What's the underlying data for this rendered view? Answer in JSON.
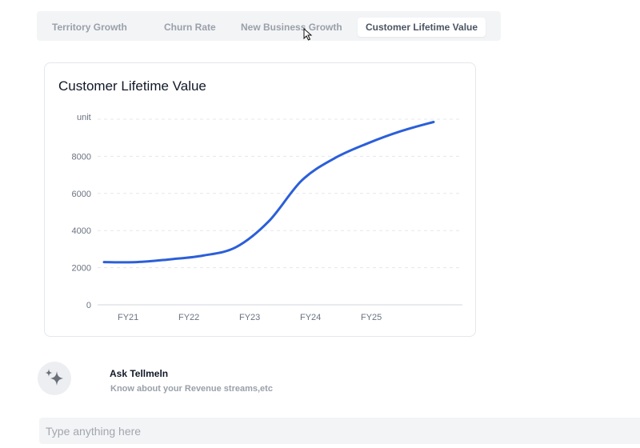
{
  "tabs": [
    {
      "label": "Territory Growth",
      "active": false
    },
    {
      "label": "Churn Rate",
      "active": false
    },
    {
      "label": "New Business Growth",
      "active": false
    },
    {
      "label": "Customer Lifetime Value",
      "active": true
    }
  ],
  "card": {
    "title": "Customer Lifetime Value"
  },
  "chart_data": {
    "type": "line",
    "title": "Customer Lifetime Value",
    "ylabel": "unit",
    "xlabel": "",
    "categories": [
      "FY21",
      "FY22",
      "FY23",
      "FY24",
      "FY25"
    ],
    "yticks": [
      0,
      2000,
      4000,
      6000,
      8000
    ],
    "ylim": [
      0,
      10000
    ],
    "grid": true,
    "series": [
      {
        "color": "#2b5fd9",
        "points": [
          {
            "x": 0,
            "y": 2300
          },
          {
            "x": 0.5,
            "y": 2300
          },
          {
            "x": 1,
            "y": 2450
          },
          {
            "x": 1.5,
            "y": 2650
          },
          {
            "x": 2,
            "y": 3100
          },
          {
            "x": 2.5,
            "y": 4500
          },
          {
            "x": 3,
            "y": 6700
          },
          {
            "x": 3.5,
            "y": 7900
          },
          {
            "x": 4,
            "y": 8700
          },
          {
            "x": 4.5,
            "y": 9350
          },
          {
            "x": 5,
            "y": 9850
          }
        ]
      }
    ]
  },
  "assistant": {
    "title": "Ask Tellmeln",
    "subtitle": "Know about your Revenue streams,etc",
    "icon": "sparkles-icon"
  },
  "chat": {
    "placeholder": "Type anything here"
  }
}
